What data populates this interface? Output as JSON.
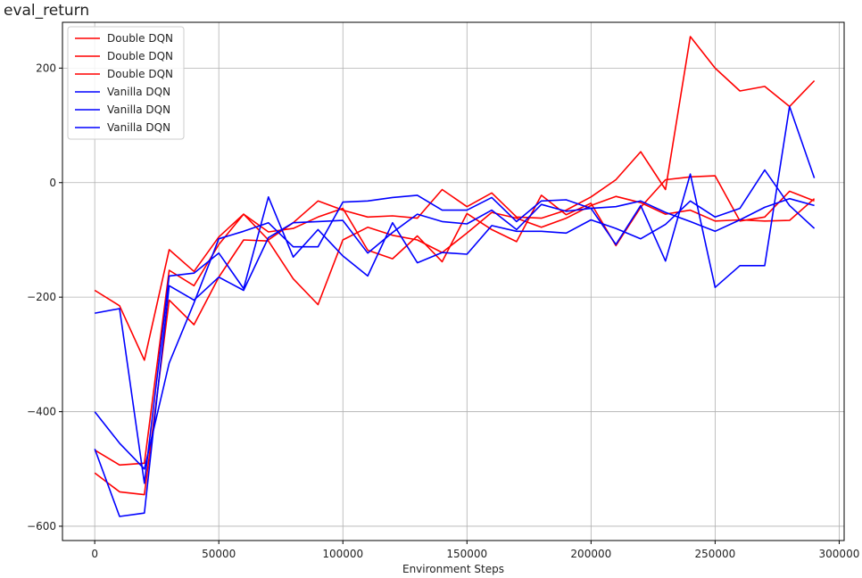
{
  "page": {
    "title": "eval_return"
  },
  "chart_data": {
    "type": "line",
    "title": "",
    "xlabel": "Environment Steps",
    "ylabel": "",
    "xlim": [
      -13000,
      302000
    ],
    "ylim": [
      -625,
      280
    ],
    "xticks": [
      0,
      50000,
      100000,
      150000,
      200000,
      250000,
      300000
    ],
    "yticks": [
      -600,
      -400,
      -200,
      0,
      200
    ],
    "grid": true,
    "legend_position": "top-left",
    "x": [
      0,
      10000,
      20000,
      30000,
      40000,
      50000,
      60000,
      70000,
      80000,
      90000,
      100000,
      110000,
      120000,
      130000,
      140000,
      150000,
      160000,
      170000,
      180000,
      190000,
      200000,
      210000,
      220000,
      230000,
      240000,
      250000,
      260000,
      270000,
      280000,
      290000
    ],
    "series": [
      {
        "name": "Double DQN",
        "color": "#ff0000",
        "values": [
          -188,
          -215,
          -310,
          -117,
          -155,
          -95,
          -55,
          -100,
          -70,
          -32,
          -48,
          -60,
          -58,
          -62,
          -12,
          -42,
          -18,
          -60,
          -62,
          -48,
          -25,
          5,
          54,
          -12,
          255,
          200,
          160,
          168,
          133,
          178
        ]
      },
      {
        "name": "Double DQN",
        "color": "#ff0000",
        "values": [
          -507,
          -540,
          -545,
          -205,
          -248,
          -165,
          -100,
          -102,
          -168,
          -213,
          -100,
          -78,
          -92,
          -100,
          -122,
          -88,
          -52,
          -62,
          -78,
          -62,
          -40,
          -24,
          -35,
          -55,
          -48,
          -67,
          -65,
          -67,
          -66,
          -28
        ]
      },
      {
        "name": "Double DQN",
        "color": "#ff0000",
        "values": [
          -467,
          -493,
          -490,
          -153,
          -180,
          -108,
          -55,
          -86,
          -80,
          -60,
          -45,
          -118,
          -133,
          -93,
          -138,
          -54,
          -82,
          -103,
          -22,
          -56,
          -36,
          -110,
          -43,
          5,
          10,
          12,
          -67,
          -60,
          -15,
          -32
        ]
      },
      {
        "name": "Vanilla DQN",
        "color": "#0000ff",
        "values": [
          -228,
          -220,
          -525,
          -163,
          -158,
          -123,
          -185,
          -25,
          -130,
          -82,
          -128,
          -163,
          -70,
          -140,
          -122,
          -125,
          -75,
          -85,
          -85,
          -88,
          -65,
          -80,
          -98,
          -73,
          -32,
          -60,
          -45,
          22,
          -40,
          -80
        ]
      },
      {
        "name": "Vanilla DQN",
        "color": "#0000ff",
        "values": [
          -400,
          -455,
          -500,
          -315,
          -210,
          -98,
          -85,
          -70,
          -112,
          -112,
          -34,
          -32,
          -26,
          -22,
          -48,
          -48,
          -26,
          -68,
          -32,
          -30,
          -45,
          -108,
          -40,
          -137,
          15,
          -183,
          -145,
          -145,
          133,
          8
        ]
      },
      {
        "name": "Vanilla DQN",
        "color": "#0000ff",
        "values": [
          -465,
          -583,
          -577,
          -180,
          -205,
          -165,
          -188,
          -96,
          -70,
          -68,
          -66,
          -123,
          -87,
          -55,
          -68,
          -72,
          -48,
          -82,
          -38,
          -50,
          -45,
          -42,
          -32,
          -52,
          -68,
          -85,
          -65,
          -43,
          -28,
          -40
        ]
      }
    ]
  }
}
